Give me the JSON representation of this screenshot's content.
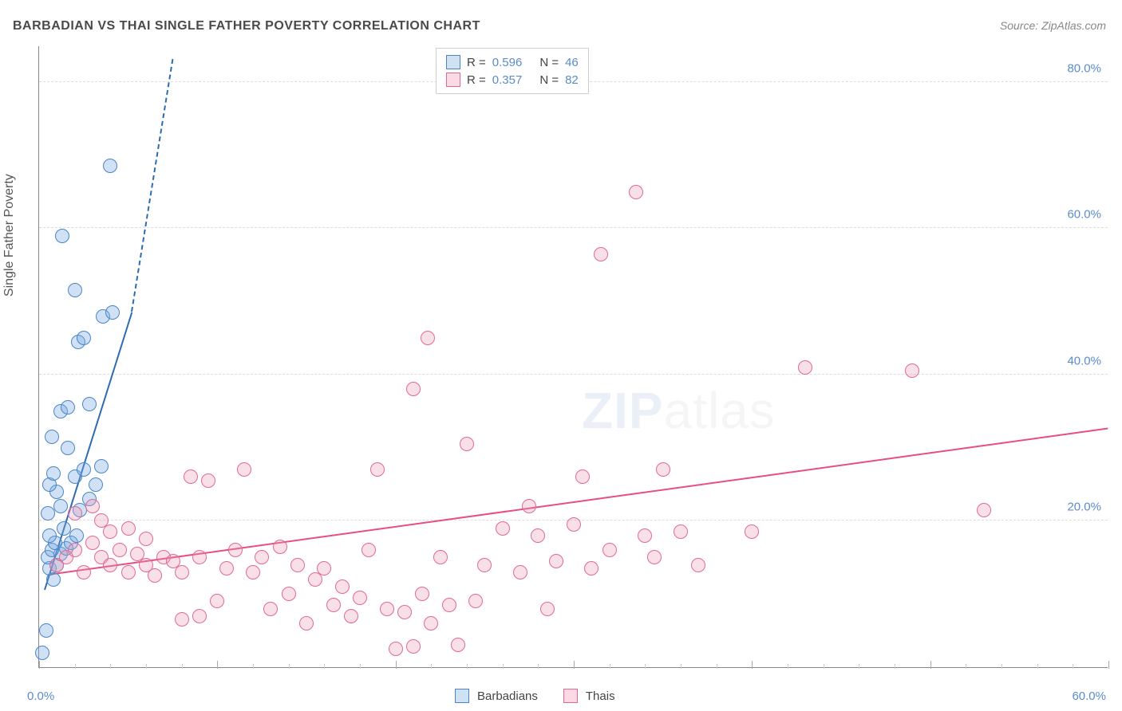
{
  "chart": {
    "type": "scatter",
    "title": "BARBADIAN VS THAI SINGLE FATHER POVERTY CORRELATION CHART",
    "source": "Source: ZipAtlas.com",
    "y_axis_title": "Single Father Poverty",
    "watermark_a": "ZIP",
    "watermark_b": "atlas",
    "background_color": "#ffffff",
    "axis_color": "#888888",
    "grid_color": "#dddddd",
    "tick_color": "#5b8cc9",
    "xlim": [
      0,
      60
    ],
    "ylim": [
      0,
      85
    ],
    "x_tick_labels": {
      "left": "0.0%",
      "right": "60.0%"
    },
    "x_minor_step": 2,
    "x_major_step": 10,
    "y_ticks": [
      {
        "value": 20,
        "label": "20.0%"
      },
      {
        "value": 40,
        "label": "40.0%"
      },
      {
        "value": 60,
        "label": "60.0%"
      },
      {
        "value": 80,
        "label": "80.0%"
      }
    ],
    "marker_radius": 9,
    "marker_stroke_width": 1.2,
    "trend_line_width": 2.5,
    "series": [
      {
        "name": "Barbadians",
        "fill_color": "rgba(120,170,225,0.35)",
        "stroke_color": "#4a86c5",
        "swatch_fill": "#cfe2f3",
        "swatch_stroke": "#4a86c5",
        "trend_color": "#2d6bb0",
        "trend": {
          "x1": 0.3,
          "y1": 10.5,
          "x2": 5.2,
          "y2": 48.5,
          "dash_from_x": 5.2,
          "dash_to_x": 7.5,
          "dash_to_y": 83
        },
        "R": "0.596",
        "N": "46",
        "points": [
          [
            0.2,
            2.0
          ],
          [
            0.4,
            5.0
          ],
          [
            0.8,
            12.0
          ],
          [
            0.6,
            13.5
          ],
          [
            1.0,
            14.0
          ],
          [
            0.5,
            15.0
          ],
          [
            1.2,
            15.5
          ],
          [
            0.7,
            16.0
          ],
          [
            1.5,
            16.2
          ],
          [
            0.9,
            17.0
          ],
          [
            1.8,
            17.0
          ],
          [
            0.6,
            18.0
          ],
          [
            2.1,
            18.0
          ],
          [
            1.4,
            19.0
          ],
          [
            0.5,
            21.0
          ],
          [
            2.3,
            21.5
          ],
          [
            1.2,
            22.0
          ],
          [
            2.8,
            23.0
          ],
          [
            1.0,
            24.0
          ],
          [
            0.6,
            25.0
          ],
          [
            3.2,
            25.0
          ],
          [
            2.0,
            26.0
          ],
          [
            0.8,
            26.5
          ],
          [
            2.5,
            27.0
          ],
          [
            3.5,
            27.5
          ],
          [
            1.6,
            30.0
          ],
          [
            0.7,
            31.5
          ],
          [
            1.2,
            35.0
          ],
          [
            1.6,
            35.5
          ],
          [
            2.8,
            36.0
          ],
          [
            2.2,
            44.5
          ],
          [
            2.5,
            45.0
          ],
          [
            3.6,
            48.0
          ],
          [
            4.1,
            48.5
          ],
          [
            2.0,
            51.5
          ],
          [
            1.3,
            59.0
          ],
          [
            4.0,
            68.5
          ]
        ]
      },
      {
        "name": "Thais",
        "fill_color": "rgba(235,150,180,0.30)",
        "stroke_color": "#e06a95",
        "swatch_fill": "#fbd9e5",
        "swatch_stroke": "#e06a95",
        "trend_color": "#e84e84",
        "trend": {
          "x1": 0.5,
          "y1": 12.5,
          "x2": 60,
          "y2": 32.5
        },
        "R": "0.357",
        "N": "82",
        "points": [
          [
            1.0,
            14.0
          ],
          [
            1.5,
            15.0
          ],
          [
            2.0,
            16.0
          ],
          [
            2.0,
            21.0
          ],
          [
            2.5,
            13.0
          ],
          [
            3.0,
            17.0
          ],
          [
            3.0,
            22.0
          ],
          [
            3.5,
            15.0
          ],
          [
            3.5,
            20.0
          ],
          [
            4.0,
            14.0
          ],
          [
            4.0,
            18.5
          ],
          [
            4.5,
            16.0
          ],
          [
            5.0,
            13.0
          ],
          [
            5.0,
            19.0
          ],
          [
            5.5,
            15.5
          ],
          [
            6.0,
            14.0
          ],
          [
            6.0,
            17.5
          ],
          [
            6.5,
            12.5
          ],
          [
            7.0,
            15.0
          ],
          [
            7.5,
            14.5
          ],
          [
            8.0,
            6.5
          ],
          [
            8.0,
            13.0
          ],
          [
            8.5,
            26.0
          ],
          [
            9.0,
            7.0
          ],
          [
            9.0,
            15.0
          ],
          [
            9.5,
            25.5
          ],
          [
            10.0,
            9.0
          ],
          [
            10.5,
            13.5
          ],
          [
            11.0,
            16.0
          ],
          [
            11.5,
            27.0
          ],
          [
            12.0,
            13.0
          ],
          [
            12.5,
            15.0
          ],
          [
            13.0,
            8.0
          ],
          [
            13.5,
            16.5
          ],
          [
            14.0,
            10.0
          ],
          [
            14.5,
            14.0
          ],
          [
            15.0,
            6.0
          ],
          [
            15.5,
            12.0
          ],
          [
            16.0,
            13.5
          ],
          [
            16.5,
            8.5
          ],
          [
            17.0,
            11.0
          ],
          [
            17.5,
            7.0
          ],
          [
            18.0,
            9.5
          ],
          [
            18.5,
            16.0
          ],
          [
            19.0,
            27.0
          ],
          [
            19.5,
            8.0
          ],
          [
            20.0,
            2.5
          ],
          [
            20.5,
            7.5
          ],
          [
            21.0,
            2.8
          ],
          [
            21.0,
            38.0
          ],
          [
            21.5,
            10.0
          ],
          [
            21.8,
            45.0
          ],
          [
            22.0,
            6.0
          ],
          [
            22.5,
            15.0
          ],
          [
            23.0,
            8.5
          ],
          [
            23.5,
            3.0
          ],
          [
            24.0,
            30.5
          ],
          [
            24.5,
            9.0
          ],
          [
            25.0,
            14.0
          ],
          [
            26.0,
            19.0
          ],
          [
            27.0,
            13.0
          ],
          [
            27.5,
            22.0
          ],
          [
            28.0,
            18.0
          ],
          [
            28.5,
            8.0
          ],
          [
            29.0,
            14.5
          ],
          [
            30.0,
            19.5
          ],
          [
            30.5,
            26.0
          ],
          [
            31.0,
            13.5
          ],
          [
            31.5,
            56.5
          ],
          [
            32.0,
            16.0
          ],
          [
            33.5,
            65.0
          ],
          [
            34.0,
            18.0
          ],
          [
            34.5,
            15.0
          ],
          [
            35.0,
            27.0
          ],
          [
            36.0,
            18.5
          ],
          [
            37.0,
            14.0
          ],
          [
            40.0,
            18.5
          ],
          [
            43.0,
            41.0
          ],
          [
            49.0,
            40.5
          ],
          [
            53.0,
            21.5
          ]
        ]
      }
    ],
    "legend_bottom": [
      {
        "label": "Barbadians",
        "fill": "#cfe2f3",
        "stroke": "#4a86c5"
      },
      {
        "label": "Thais",
        "fill": "#fbd9e5",
        "stroke": "#e06a95"
      }
    ]
  }
}
